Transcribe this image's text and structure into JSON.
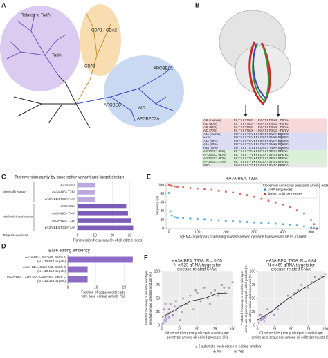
{
  "panel_labels": [
    "A",
    "B",
    "C",
    "D",
    "E",
    "F"
  ],
  "panels": {
    "A": {
      "labels": [
        "Related to TadA",
        "TadA",
        "CDA1 / CDA2",
        "CDA1",
        "APOBEC",
        "APOBEC1",
        "AID",
        "APOBEC3A"
      ]
    },
    "B": {
      "rows": [
        [
          "AID (Human)",
          "RLTYCVMKR--DSATSFSLD-FGYL"
        ],
        [
          "AID (90%)",
          "RLTYCVMKR--DSATSFSLD-FGYL"
        ],
        [
          "AID (80%)",
          "RLTYCVMKR--DSATSFSLD-FGYL"
        ],
        [
          "AID (70%)",
          "RLTYCVMKK--DSATSFSLD-FGYV"
        ],
        [
          "A3A (Human)",
          "RHTYLCYEVERLDNGTSVKMDQHRG"
        ],
        [
          "eA3A",
          "RHTYLCYEVERLDNGTSVKMDQHRG"
        ],
        [
          "A3A (90%)",
          "RHTYLCYEVERLDNGTSVKMDQHRG"
        ],
        [
          "A3A (80%)",
          "RHTYLCYEVERLDNGTSVKMDQHRG"
        ],
        [
          "A3A (70%)",
          "RHTYLCYEVERLDNGTTVKMDQHRG"
        ],
        [
          "APOBEC1 (Rat)",
          "RKTYLCYVVKRRDSATSFSLDFGYL"
        ],
        [
          "APOBEC1 (90%)",
          "RKTYLCYVVKRRDSATSFSLDFGYL"
        ],
        [
          "APOBEC1 (80%)",
          "RKTYLCYVVKRRDSATSFSLDFGYL"
        ],
        [
          "APOBEC1 (70%)",
          "RKTYLCFVVKRRDSATSFSLDFGYL"
        ],
        [
          "CDA",
          "RKSFLCLVFERLGSSNSVTAEEGPA"
        ]
      ]
    }
  },
  "chart_data": [
    {
      "type": "hbar",
      "title": "Transversion purity by base editor variant and target design",
      "categories": [
        "eA3A-BE4",
        "eA3A-BE4 T31A",
        "eA3A-BE4 T31AT44A",
        "eA3A-BE4",
        "eA3A-BE4 T44A",
        "eA3A-BE4 T31A",
        "eA3A-BE4 T31AT44A"
      ],
      "groups": [
        "Minimally biased",
        "Predicted by model to be enriched for transversions",
        "Target sequences"
      ],
      "values": [
        10,
        10,
        10,
        28,
        29,
        31,
        32
      ],
      "colors": [
        "#bba9e0",
        "#bba9e0",
        "#bba9e0",
        "#7b5cb8",
        "#7b5cb8",
        "#7b5cb8",
        "#7b5cb8"
      ],
      "xlim": [
        0,
        35
      ],
      "xticks": [
        0,
        10,
        20,
        30
      ],
      "xlabel": [
        "Transversion frequency (% of all edited reads)"
      ]
    },
    {
      "type": "hbar",
      "title": "Base editing efficiency",
      "categories": [
        "eA3A-BE4, SpCas9, Batch A",
        "eA3A-BE4, Cas9-NG, Batch B",
        "eA3A-BE4 T31AT44A, Cas9-NG, Batch C"
      ],
      "category_notes": [
        "(N = 10,627 targets)",
        "(N = 10,156 targets)",
        "(N = 10,335 targets)"
      ],
      "values": [
        23,
        7,
        7
      ],
      "colors": [
        "#8c6cc4",
        "#8c6cc4",
        "#8c6cc4"
      ],
      "xlim": [
        0,
        25
      ],
      "xticks": [
        0,
        10,
        20
      ],
      "xlabel": [
        "Fraction of sequenced reads",
        "with base editing activity (%)"
      ]
    },
    {
      "type": "scatter",
      "title": "eA3A-BE4, T31A",
      "x": [
        0,
        5,
        10,
        20,
        30,
        50,
        75,
        100,
        125,
        150,
        175,
        200,
        225,
        250,
        275,
        300,
        325,
        350,
        375,
        400,
        425,
        450,
        475,
        500,
        510,
        520
      ],
      "series": [
        {
          "name": "DNA sequences",
          "color": "#2b8fd6",
          "values": [
            82,
            40,
            30,
            26,
            25,
            24,
            23,
            22,
            21,
            20,
            19,
            18,
            17,
            16,
            15,
            14,
            13,
            12,
            11,
            10,
            9,
            7,
            5,
            2,
            1,
            0
          ]
        },
        {
          "name": "Amino acid sequences",
          "color": "#d63a2b",
          "values": [
            100,
            99,
            98,
            97,
            96,
            95,
            93,
            92,
            90,
            89,
            87,
            85,
            83,
            80,
            77,
            73,
            68,
            64,
            60,
            55,
            49,
            42,
            35,
            20,
            10,
            0
          ]
        }
      ],
      "legend_title": "Observed correction precision among edited",
      "xlim": [
        -10,
        530
      ],
      "ylim": [
        0,
        105
      ],
      "xticks": [
        0,
        100,
        200,
        300,
        400,
        500
      ],
      "yticks": [
        0,
        20,
        40,
        60,
        80,
        100
      ],
      "xlabel": [
        "sgRNA-target pairs containing disease-related cytosine transversion SNVs, ranked"
      ],
      "ylabel": [
        "Frequency (%)"
      ]
    },
    {
      "type": "scatter",
      "title": "eA3A-BE4, T31A, R = 0.55",
      "subtitle": "N = 523 gRNA-targets for",
      "subtitle2": "disease-related SNVs",
      "series": [
        {
          "name": "No",
          "color": "#8a8a8a",
          "x": [
            5,
            10,
            15,
            20,
            25,
            30,
            35,
            40,
            45,
            50,
            55,
            60,
            65,
            70,
            75,
            80,
            85,
            90,
            95,
            100,
            12,
            28,
            48,
            68,
            88
          ],
          "values": [
            15,
            30,
            20,
            45,
            35,
            50,
            40,
            55,
            30,
            60,
            45,
            70,
            50,
            60,
            65,
            55,
            75,
            60,
            70,
            80,
            40,
            25,
            65,
            40,
            70
          ]
        },
        {
          "name": "Yes",
          "color": "#9b7fd4",
          "x": [
            2,
            4,
            6,
            8,
            10,
            3,
            7,
            12,
            15,
            18,
            1,
            5,
            9,
            20,
            25
          ],
          "values": [
            5,
            10,
            8,
            20,
            15,
            30,
            12,
            25,
            18,
            35,
            3,
            40,
            22,
            28,
            10
          ]
        }
      ],
      "trend": {
        "x": [
          0,
          20,
          40,
          60,
          80,
          100
        ],
        "values": [
          15,
          30,
          45,
          50,
          60,
          58
        ]
      },
      "legend_title": "≥ 2 substrate nucleotides in editing window",
      "xlim": [
        0,
        100
      ],
      "ylim": [
        0,
        100
      ],
      "xticks": [
        0,
        25,
        50,
        75,
        100
      ],
      "yticks": [
        0,
        25,
        50,
        75,
        100
      ],
      "xlabel": [
        "Observed frequency of repair to wild-type",
        "genotype among all edited products (%)"
      ],
      "ylabel": [
        "Predicted frequency of repair to wild-type",
        "genotype among all edited products (%)"
      ]
    },
    {
      "type": "scatter",
      "title": "eA3A-BE4, T31A, R = 0.84",
      "subtitle": "N = 469 gRNA-targets for",
      "subtitle2": "disease-related SNVs",
      "series": [
        {
          "color": "#8a8a8a",
          "x": [
            10,
            20,
            30,
            40,
            50,
            60,
            70,
            80,
            90,
            100,
            15,
            35,
            55,
            75,
            95,
            45,
            65,
            85,
            25,
            5
          ],
          "values": [
            15,
            25,
            30,
            45,
            50,
            65,
            70,
            80,
            85,
            95,
            30,
            40,
            60,
            70,
            90,
            55,
            75,
            90,
            20,
            20
          ]
        },
        {
          "color": "#9b7fd4",
          "x": [
            2,
            5,
            8,
            12,
            15,
            20,
            25,
            30,
            3,
            10
          ],
          "values": [
            5,
            10,
            12,
            15,
            20,
            25,
            20,
            35,
            20,
            8
          ]
        }
      ],
      "trend": {
        "x": [
          0,
          20,
          40,
          60,
          80,
          100
        ],
        "values": [
          10,
          25,
          45,
          62,
          78,
          92
        ]
      },
      "xlim": [
        0,
        100
      ],
      "ylim": [
        0,
        100
      ],
      "xticks": [
        0,
        25,
        50,
        75,
        100
      ],
      "yticks": [
        0,
        25,
        50,
        75,
        100
      ],
      "xlabel": [
        "Observed frequency of repair to wild-type",
        "amino acid sequence among all edited products (%)"
      ],
      "ylabel": [
        "Predicted frequency of repair to wild-type",
        "amino acid sequence among all edited products (%)",
        "with edited amino acid sequences (%)"
      ]
    }
  ]
}
